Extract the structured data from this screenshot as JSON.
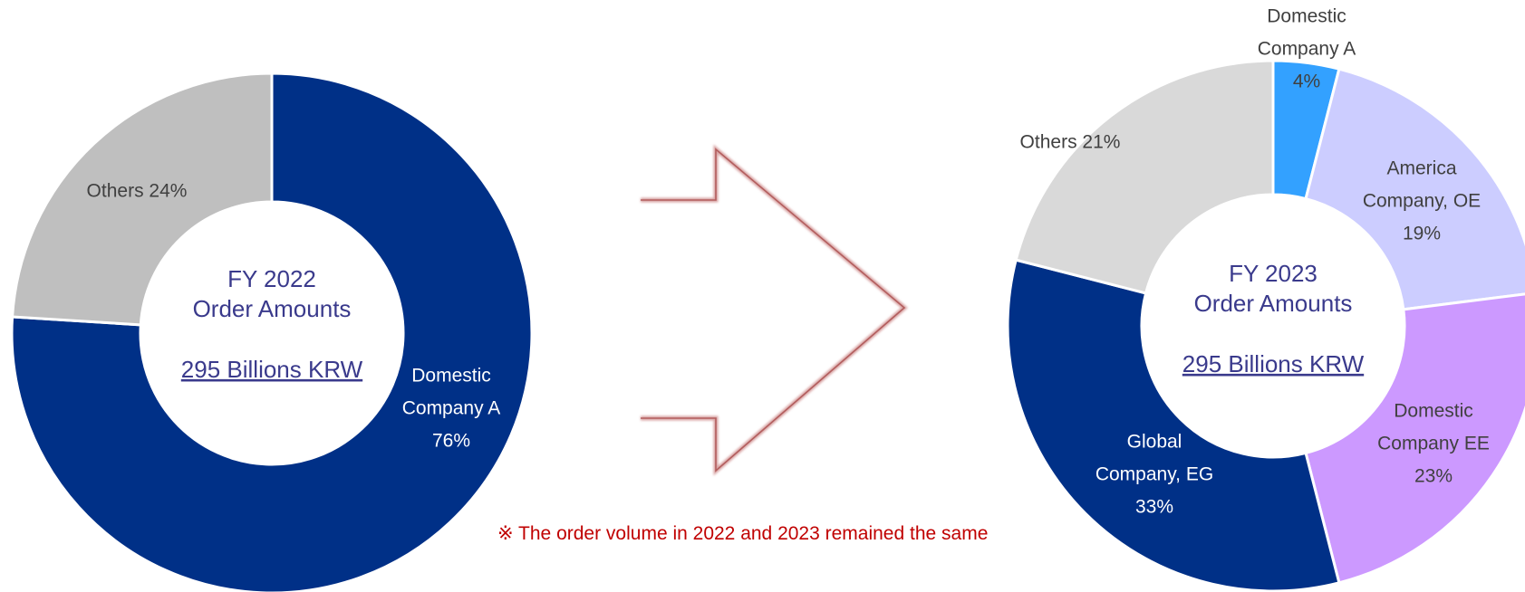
{
  "chart_data": [
    {
      "type": "pie",
      "title": "FY 2022",
      "subtitle": "Order Amounts",
      "total_label": "295 Billions KRW",
      "slices": [
        {
          "name": "Domestic Company A",
          "label_lines": [
            "Domestic",
            "Company A",
            "76%"
          ],
          "value": 76,
          "color": "#003087",
          "label_color": "#ffffff"
        },
        {
          "name": "Others",
          "label_lines": [
            "Others 24%"
          ],
          "value": 24,
          "color": "#bfbfbf",
          "label_color": "#404040"
        }
      ]
    },
    {
      "type": "pie",
      "title": "FY 2023",
      "subtitle": "Order Amounts",
      "total_label": "295 Billions KRW",
      "slices": [
        {
          "name": "Domestic Company A",
          "label_lines": [
            "Domestic",
            "Company A",
            "4%"
          ],
          "value": 4,
          "color": "#33a1ff",
          "label_color": "#404040"
        },
        {
          "name": "America Company, OE",
          "label_lines": [
            "America",
            "Company, OE",
            "19%"
          ],
          "value": 19,
          "color": "#cccdff",
          "label_color": "#404040"
        },
        {
          "name": "Domestic Company EE",
          "label_lines": [
            "Domestic",
            "Company EE",
            "23%"
          ],
          "value": 23,
          "color": "#cc99ff",
          "label_color": "#404040"
        },
        {
          "name": "Global Company, EG",
          "label_lines": [
            "Global",
            "Company, EG",
            "33%"
          ],
          "value": 33,
          "color": "#003087",
          "label_color": "#ffffff"
        },
        {
          "name": "Others",
          "label_lines": [
            "Others 21%"
          ],
          "value": 21,
          "color": "#d9d9d9",
          "label_color": "#404040"
        }
      ]
    }
  ],
  "note": "※ The order volume in 2022 and 2023 remained the same"
}
